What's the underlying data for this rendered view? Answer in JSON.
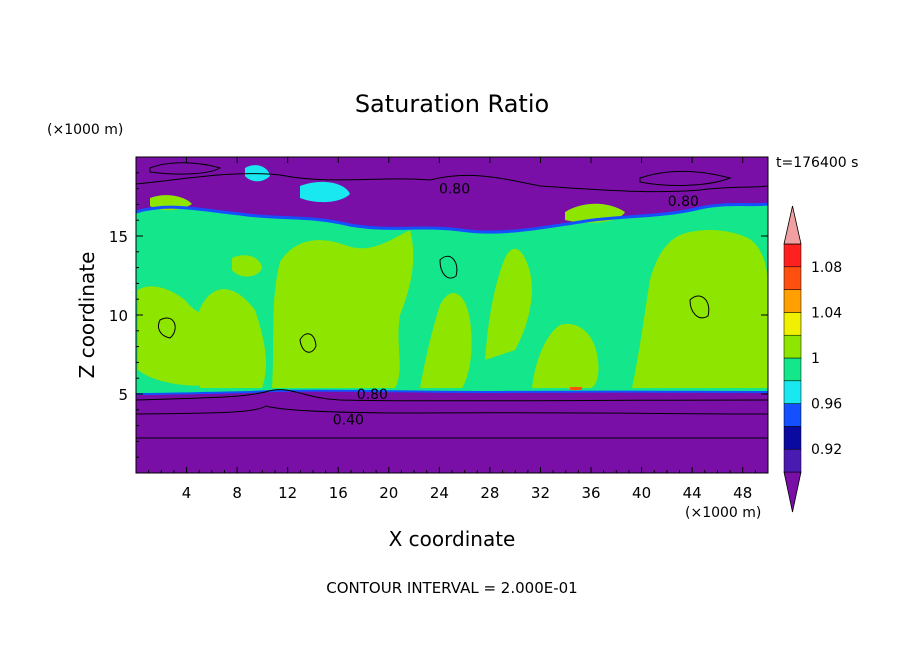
{
  "chart_data": {
    "type": "heatmap",
    "title": "Saturation Ratio",
    "xlabel": "X coordinate",
    "ylabel": "Z coordinate",
    "x_unit": "(×1000 m)",
    "y_unit": "(×1000 m)",
    "time_label": "t=176400 s",
    "footer": "CONTOUR INTERVAL = 2.000E-01",
    "xlim": [
      0,
      50
    ],
    "ylim": [
      0,
      20
    ],
    "x_ticks": [
      4,
      8,
      12,
      16,
      20,
      24,
      28,
      32,
      36,
      40,
      44,
      48
    ],
    "y_ticks": [
      5,
      10,
      15
    ],
    "contour_labels": [
      {
        "text": "0.80",
        "x": 18.7,
        "z": 5.0
      },
      {
        "text": "0.40",
        "x": 16.8,
        "z": 3.4
      },
      {
        "text": "0.80",
        "x": 25.2,
        "z": 18.0
      },
      {
        "text": "0.80",
        "x": 43.3,
        "z": 17.2
      }
    ],
    "colorbar": {
      "levels": [
        0.92,
        0.96,
        1,
        1.04,
        1.08
      ],
      "bands": [
        {
          "range": "<0.90",
          "color": "#7a0fa8"
        },
        {
          "range": "0.90-0.92",
          "color": "#4a1bb0"
        },
        {
          "range": "0.92-0.94",
          "color": "#0a0aa0"
        },
        {
          "range": "0.94-0.96",
          "color": "#1450ff"
        },
        {
          "range": "0.96-0.98",
          "color": "#19e8f0"
        },
        {
          "range": "0.98-1.00",
          "color": "#14e68c"
        },
        {
          "range": "1.00-1.02",
          "color": "#8ee600"
        },
        {
          "range": "1.02-1.04",
          "color": "#f0f000"
        },
        {
          "range": "1.04-1.06",
          "color": "#ffa000"
        },
        {
          "range": "1.06-1.08",
          "color": "#ff5010"
        },
        {
          "range": "1.08-1.10",
          "color": "#ff2020"
        },
        {
          "range": ">1.10",
          "color": "#f0a0a0"
        }
      ]
    },
    "regions": [
      {
        "name": "lower-dry-layer",
        "z_range": [
          0,
          5.2
        ],
        "value": "<0.90"
      },
      {
        "name": "mid-moist-layer",
        "z_range": [
          5.2,
          16.5
        ],
        "value": "0.98-1.02"
      },
      {
        "name": "upper-dry-layer",
        "z_range": [
          16.5,
          20
        ],
        "value": "<0.90"
      }
    ]
  }
}
